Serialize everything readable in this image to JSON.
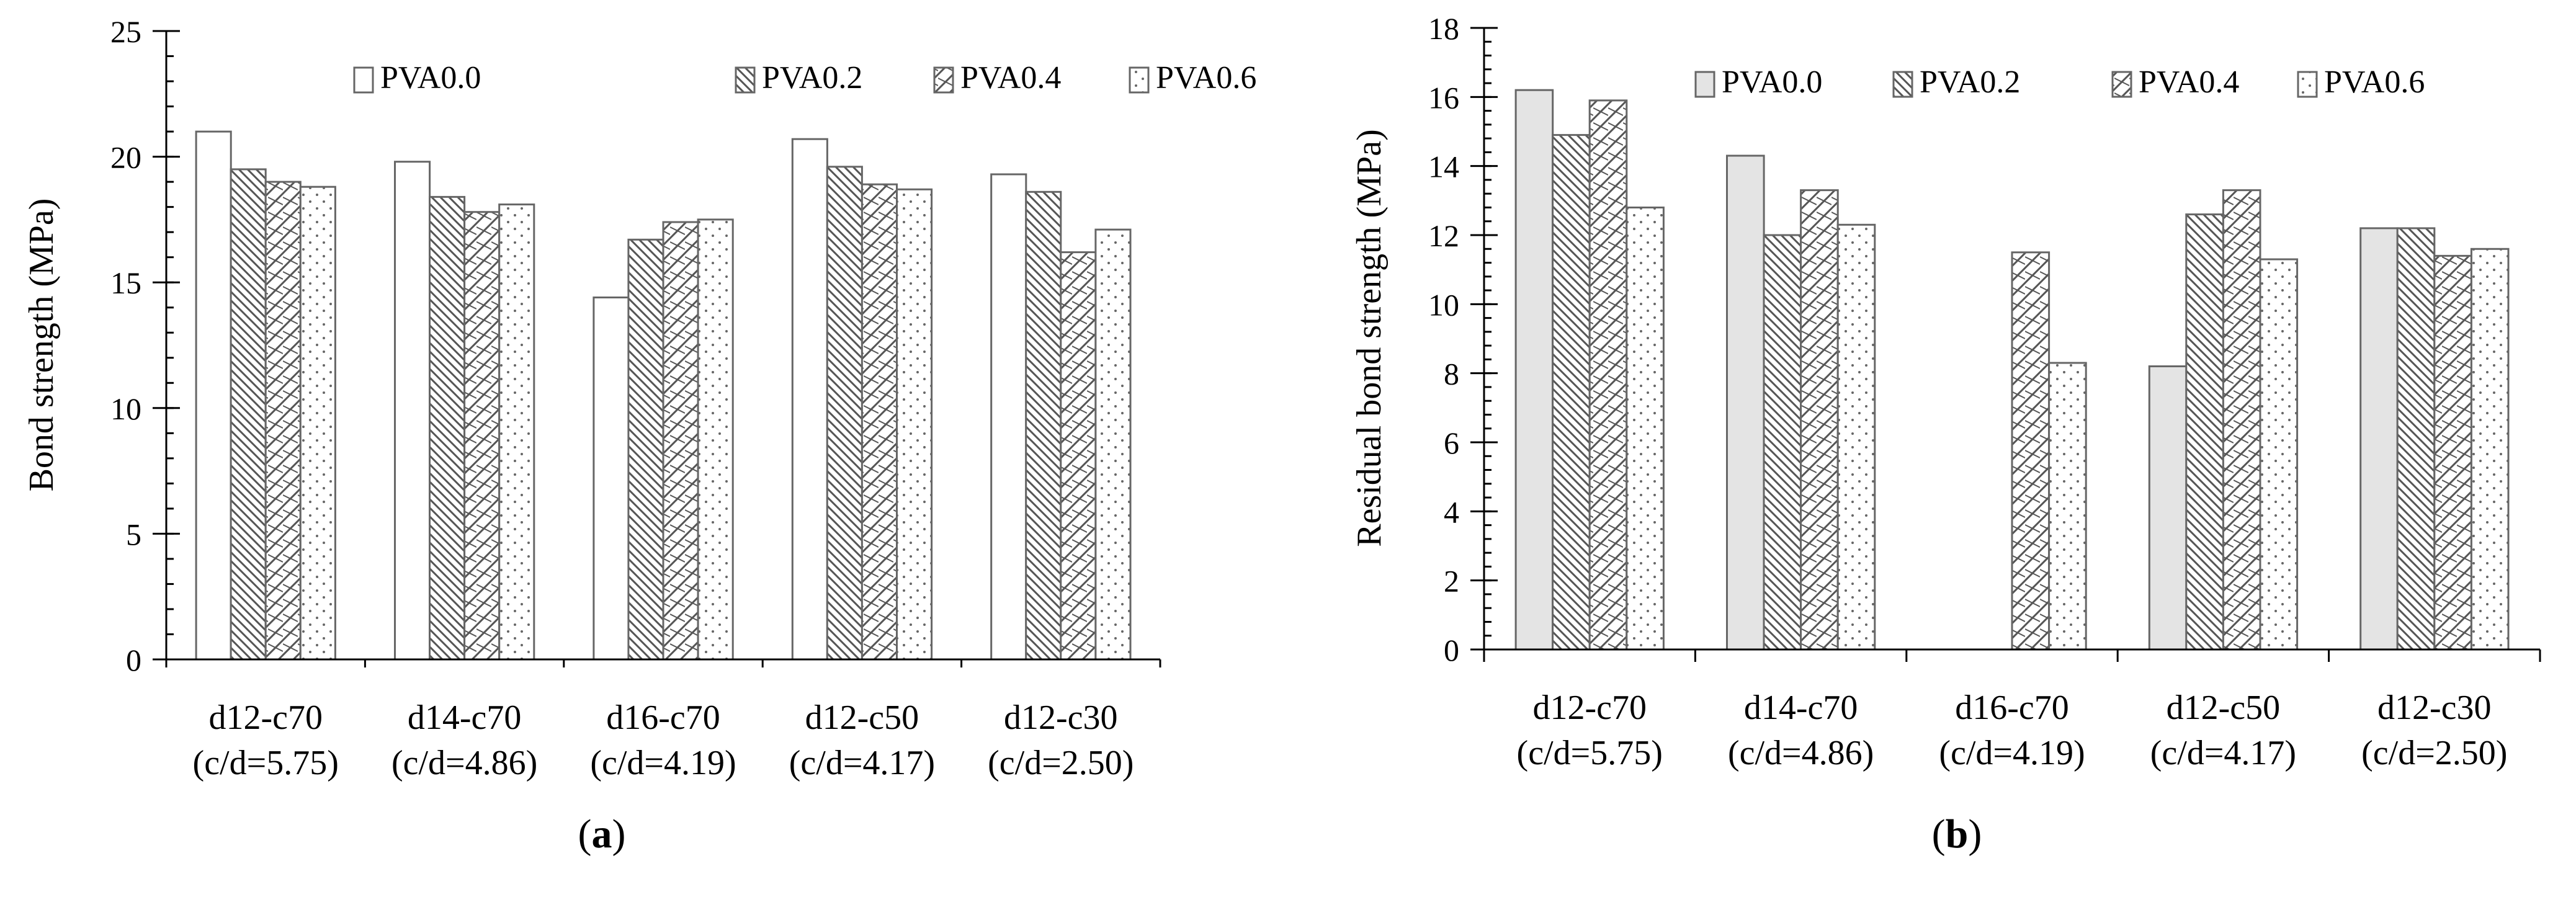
{
  "chart_data": [
    {
      "type": "bar",
      "panel": "(a)",
      "panel_parts": {
        "open": "(",
        "letter": "a",
        "close": ")"
      },
      "ylabel": "Bond strength (MPa)",
      "xlabel": "",
      "ylim": [
        0,
        25
      ],
      "yticks": [
        0,
        5,
        10,
        15,
        20,
        25
      ],
      "grid": false,
      "legend_position": "top-right",
      "categories": [
        {
          "name": "d12-c70",
          "ratio": "(c/d=5.75)"
        },
        {
          "name": "d14-c70",
          "ratio": "(c/d=4.86)"
        },
        {
          "name": "d16-c70",
          "ratio": "(c/d=4.19)"
        },
        {
          "name": "d12-c50",
          "ratio": "(c/d=4.17)"
        },
        {
          "name": "d12-c30",
          "ratio": "(c/d=2.50)"
        }
      ],
      "series": [
        {
          "name": "PVA0.0",
          "pattern": "blank",
          "values": [
            21.0,
            19.8,
            14.4,
            20.7,
            19.3
          ]
        },
        {
          "name": "PVA0.2",
          "pattern": "hatch-backslash",
          "values": [
            19.5,
            18.4,
            16.7,
            19.6,
            18.6
          ]
        },
        {
          "name": "PVA0.4",
          "pattern": "hatch-cross",
          "values": [
            19.0,
            17.8,
            17.4,
            18.9,
            16.2
          ]
        },
        {
          "name": "PVA0.6",
          "pattern": "dots",
          "values": [
            18.8,
            18.1,
            17.5,
            18.7,
            17.1
          ]
        }
      ]
    },
    {
      "type": "bar",
      "panel": "(b)",
      "panel_parts": {
        "open": "(",
        "letter": "b",
        "close": ")"
      },
      "ylabel": "Residual bond strength (MPa)",
      "xlabel": "",
      "ylim": [
        0,
        18
      ],
      "yticks": [
        0,
        2,
        4,
        6,
        8,
        10,
        12,
        14,
        16,
        18
      ],
      "grid": false,
      "legend_position": "top-right",
      "categories": [
        {
          "name": "d12-c70",
          "ratio": "(c/d=5.75)"
        },
        {
          "name": "d14-c70",
          "ratio": "(c/d=4.86)"
        },
        {
          "name": "d16-c70",
          "ratio": "(c/d=4.19)"
        },
        {
          "name": "d12-c50",
          "ratio": "(c/d=4.17)"
        },
        {
          "name": "d12-c30",
          "ratio": "(c/d=2.50)"
        }
      ],
      "series": [
        {
          "name": "PVA0.0",
          "pattern": "solid-gray",
          "values": [
            16.2,
            14.3,
            0,
            8.2,
            12.2
          ]
        },
        {
          "name": "PVA0.2",
          "pattern": "hatch-backslash",
          "values": [
            14.9,
            12.0,
            0,
            12.6,
            12.2
          ]
        },
        {
          "name": "PVA0.4",
          "pattern": "hatch-cross",
          "values": [
            15.9,
            13.3,
            11.5,
            13.3,
            11.4
          ]
        },
        {
          "name": "PVA0.6",
          "pattern": "dots",
          "values": [
            12.8,
            12.3,
            8.3,
            11.3,
            11.6
          ]
        }
      ]
    }
  ],
  "colors": {
    "axis": "#000000",
    "bar_stroke": "#666666",
    "solid_gray": "#e4e4e4",
    "hatch": "#555555",
    "background": "#ffffff"
  }
}
